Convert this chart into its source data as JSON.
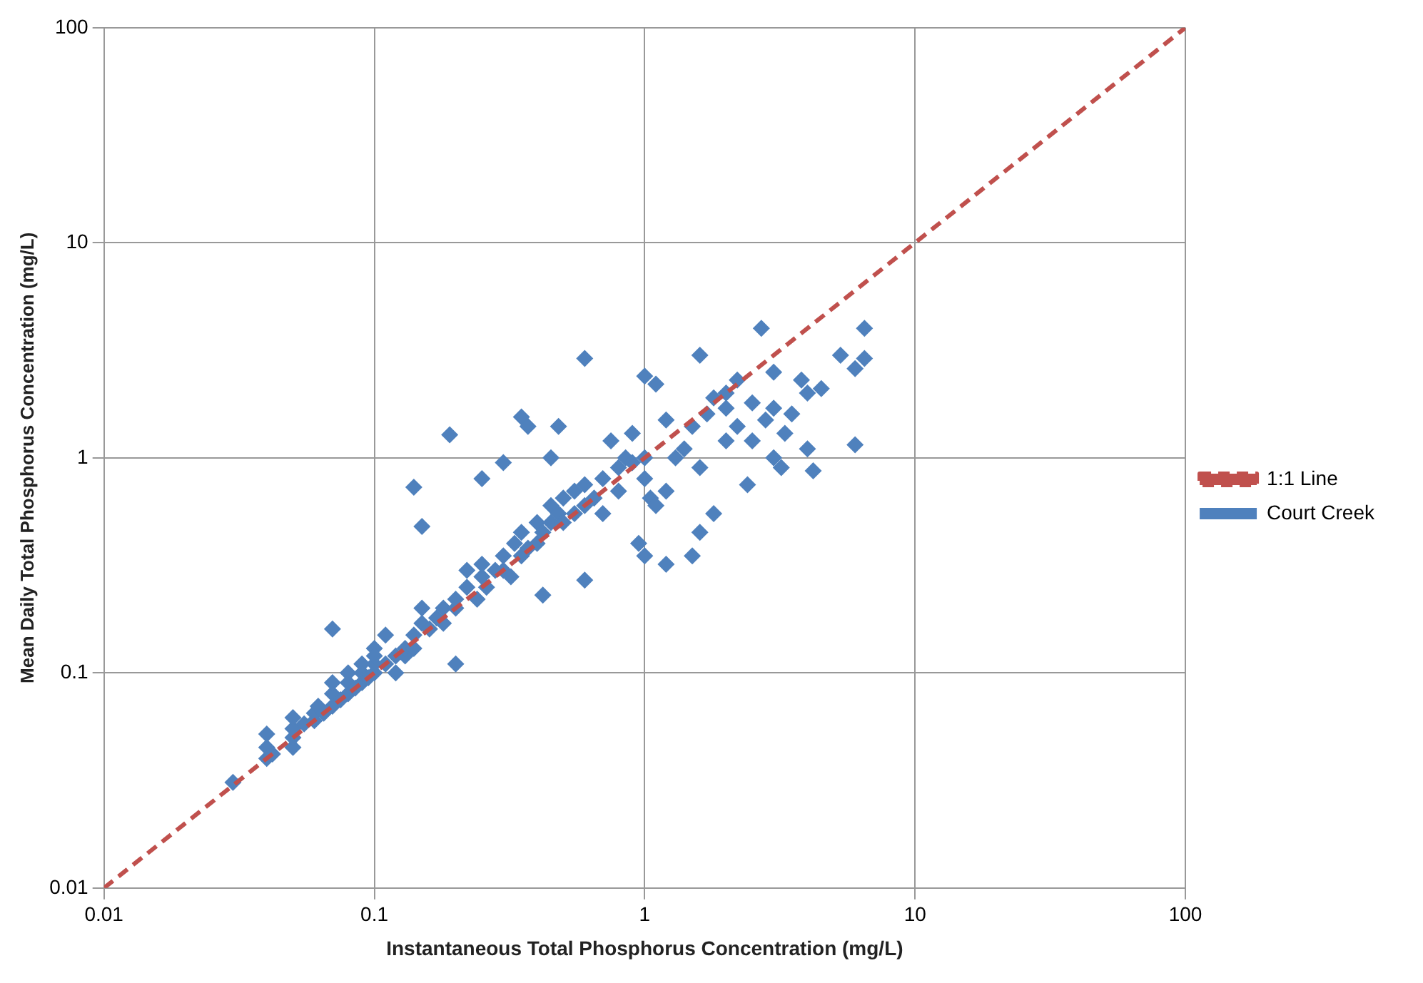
{
  "chart_data": {
    "type": "scatter",
    "xlabel": "Instantaneous Total Phosphorus Concentration (mg/L)",
    "ylabel": "Mean Daily Total Phosphorus Concentration (mg/L)",
    "log": "xy",
    "grid": true,
    "legend": "right",
    "xlim": [
      0.01,
      100
    ],
    "ylim": [
      0.01,
      100
    ],
    "xticks": [
      0.01,
      0.1,
      1,
      10,
      100
    ],
    "yticks": [
      0.01,
      0.1,
      1,
      10,
      100
    ],
    "series": [
      {
        "name": "1:1 Line",
        "type": "line",
        "color": "#c0504d",
        "line_style": "dashed",
        "marker": "none",
        "x": [
          0.01,
          100
        ],
        "values": [
          0.01,
          100
        ]
      },
      {
        "name": "Court Creek",
        "type": "scatter",
        "color": "#4f81bd",
        "marker": "diamond",
        "x": [
          0.04,
          0.04,
          0.04,
          0.042,
          0.05,
          0.05,
          0.05,
          0.05,
          0.055,
          0.06,
          0.06,
          0.062,
          0.065,
          0.07,
          0.07,
          0.07,
          0.075,
          0.08,
          0.08,
          0.08,
          0.085,
          0.09,
          0.09,
          0.09,
          0.095,
          0.1,
          0.1,
          0.1,
          0.1,
          0.11,
          0.11,
          0.12,
          0.12,
          0.13,
          0.13,
          0.14,
          0.14,
          0.15,
          0.15,
          0.16,
          0.17,
          0.18,
          0.18,
          0.2,
          0.2,
          0.2,
          0.22,
          0.22,
          0.24,
          0.25,
          0.25,
          0.26,
          0.28,
          0.3,
          0.3,
          0.32,
          0.33,
          0.35,
          0.35,
          0.37,
          0.4,
          0.4,
          0.42,
          0.42,
          0.45,
          0.45,
          0.48,
          0.5,
          0.5,
          0.55,
          0.55,
          0.6,
          0.6,
          0.6,
          0.65,
          0.7,
          0.7,
          0.75,
          0.8,
          0.8,
          0.85,
          0.9,
          0.9,
          0.95,
          1,
          1,
          1,
          1,
          1.05,
          1.1,
          1.1,
          1.2,
          1.2,
          1.2,
          1.3,
          1.4,
          1.5,
          1.5,
          1.6,
          1.6,
          1.6,
          1.7,
          1.8,
          1.8,
          2,
          2,
          2,
          2.2,
          2.2,
          2.4,
          2.5,
          2.5,
          2.7,
          2.8,
          3,
          3,
          3,
          3.2,
          3.3,
          3.5,
          3.8,
          4,
          4,
          4.2,
          4.5,
          5.3,
          6,
          6,
          6.5,
          6.5,
          0.03,
          0.07,
          0.14,
          0.15,
          0.19,
          0.25,
          0.3,
          0.35,
          0.37,
          0.6,
          0.48,
          0.45
        ],
        "values": [
          0.04,
          0.045,
          0.052,
          0.042,
          0.045,
          0.05,
          0.055,
          0.062,
          0.058,
          0.06,
          0.065,
          0.07,
          0.065,
          0.07,
          0.08,
          0.09,
          0.075,
          0.08,
          0.09,
          0.1,
          0.085,
          0.09,
          0.1,
          0.11,
          0.095,
          0.1,
          0.11,
          0.13,
          0.12,
          0.11,
          0.15,
          0.12,
          0.1,
          0.12,
          0.13,
          0.15,
          0.13,
          0.17,
          0.2,
          0.16,
          0.18,
          0.2,
          0.17,
          0.11,
          0.2,
          0.22,
          0.25,
          0.3,
          0.22,
          0.28,
          0.32,
          0.25,
          0.3,
          0.3,
          0.35,
          0.28,
          0.4,
          0.35,
          0.45,
          0.38,
          0.4,
          0.5,
          0.23,
          0.45,
          0.5,
          0.6,
          0.55,
          0.5,
          0.65,
          0.55,
          0.7,
          0.6,
          0.27,
          0.75,
          0.65,
          0.8,
          0.55,
          1.2,
          0.9,
          0.7,
          1,
          0.95,
          1.3,
          0.4,
          0.35,
          1,
          2.4,
          0.8,
          0.65,
          2.2,
          0.6,
          1.5,
          0.7,
          0.32,
          1,
          1.1,
          0.35,
          1.4,
          3,
          0.45,
          0.9,
          1.6,
          0.55,
          1.9,
          1.2,
          1.7,
          2,
          1.4,
          2.3,
          0.75,
          1.8,
          1.2,
          4,
          1.5,
          1.7,
          1,
          2.5,
          0.9,
          1.3,
          1.6,
          2.3,
          2,
          1.1,
          0.87,
          2.1,
          3,
          1.15,
          2.6,
          4,
          2.9,
          0.031,
          0.16,
          0.73,
          0.48,
          1.28,
          0.8,
          0.95,
          1.55,
          1.4,
          2.9,
          1.4,
          1
        ]
      }
    ]
  }
}
